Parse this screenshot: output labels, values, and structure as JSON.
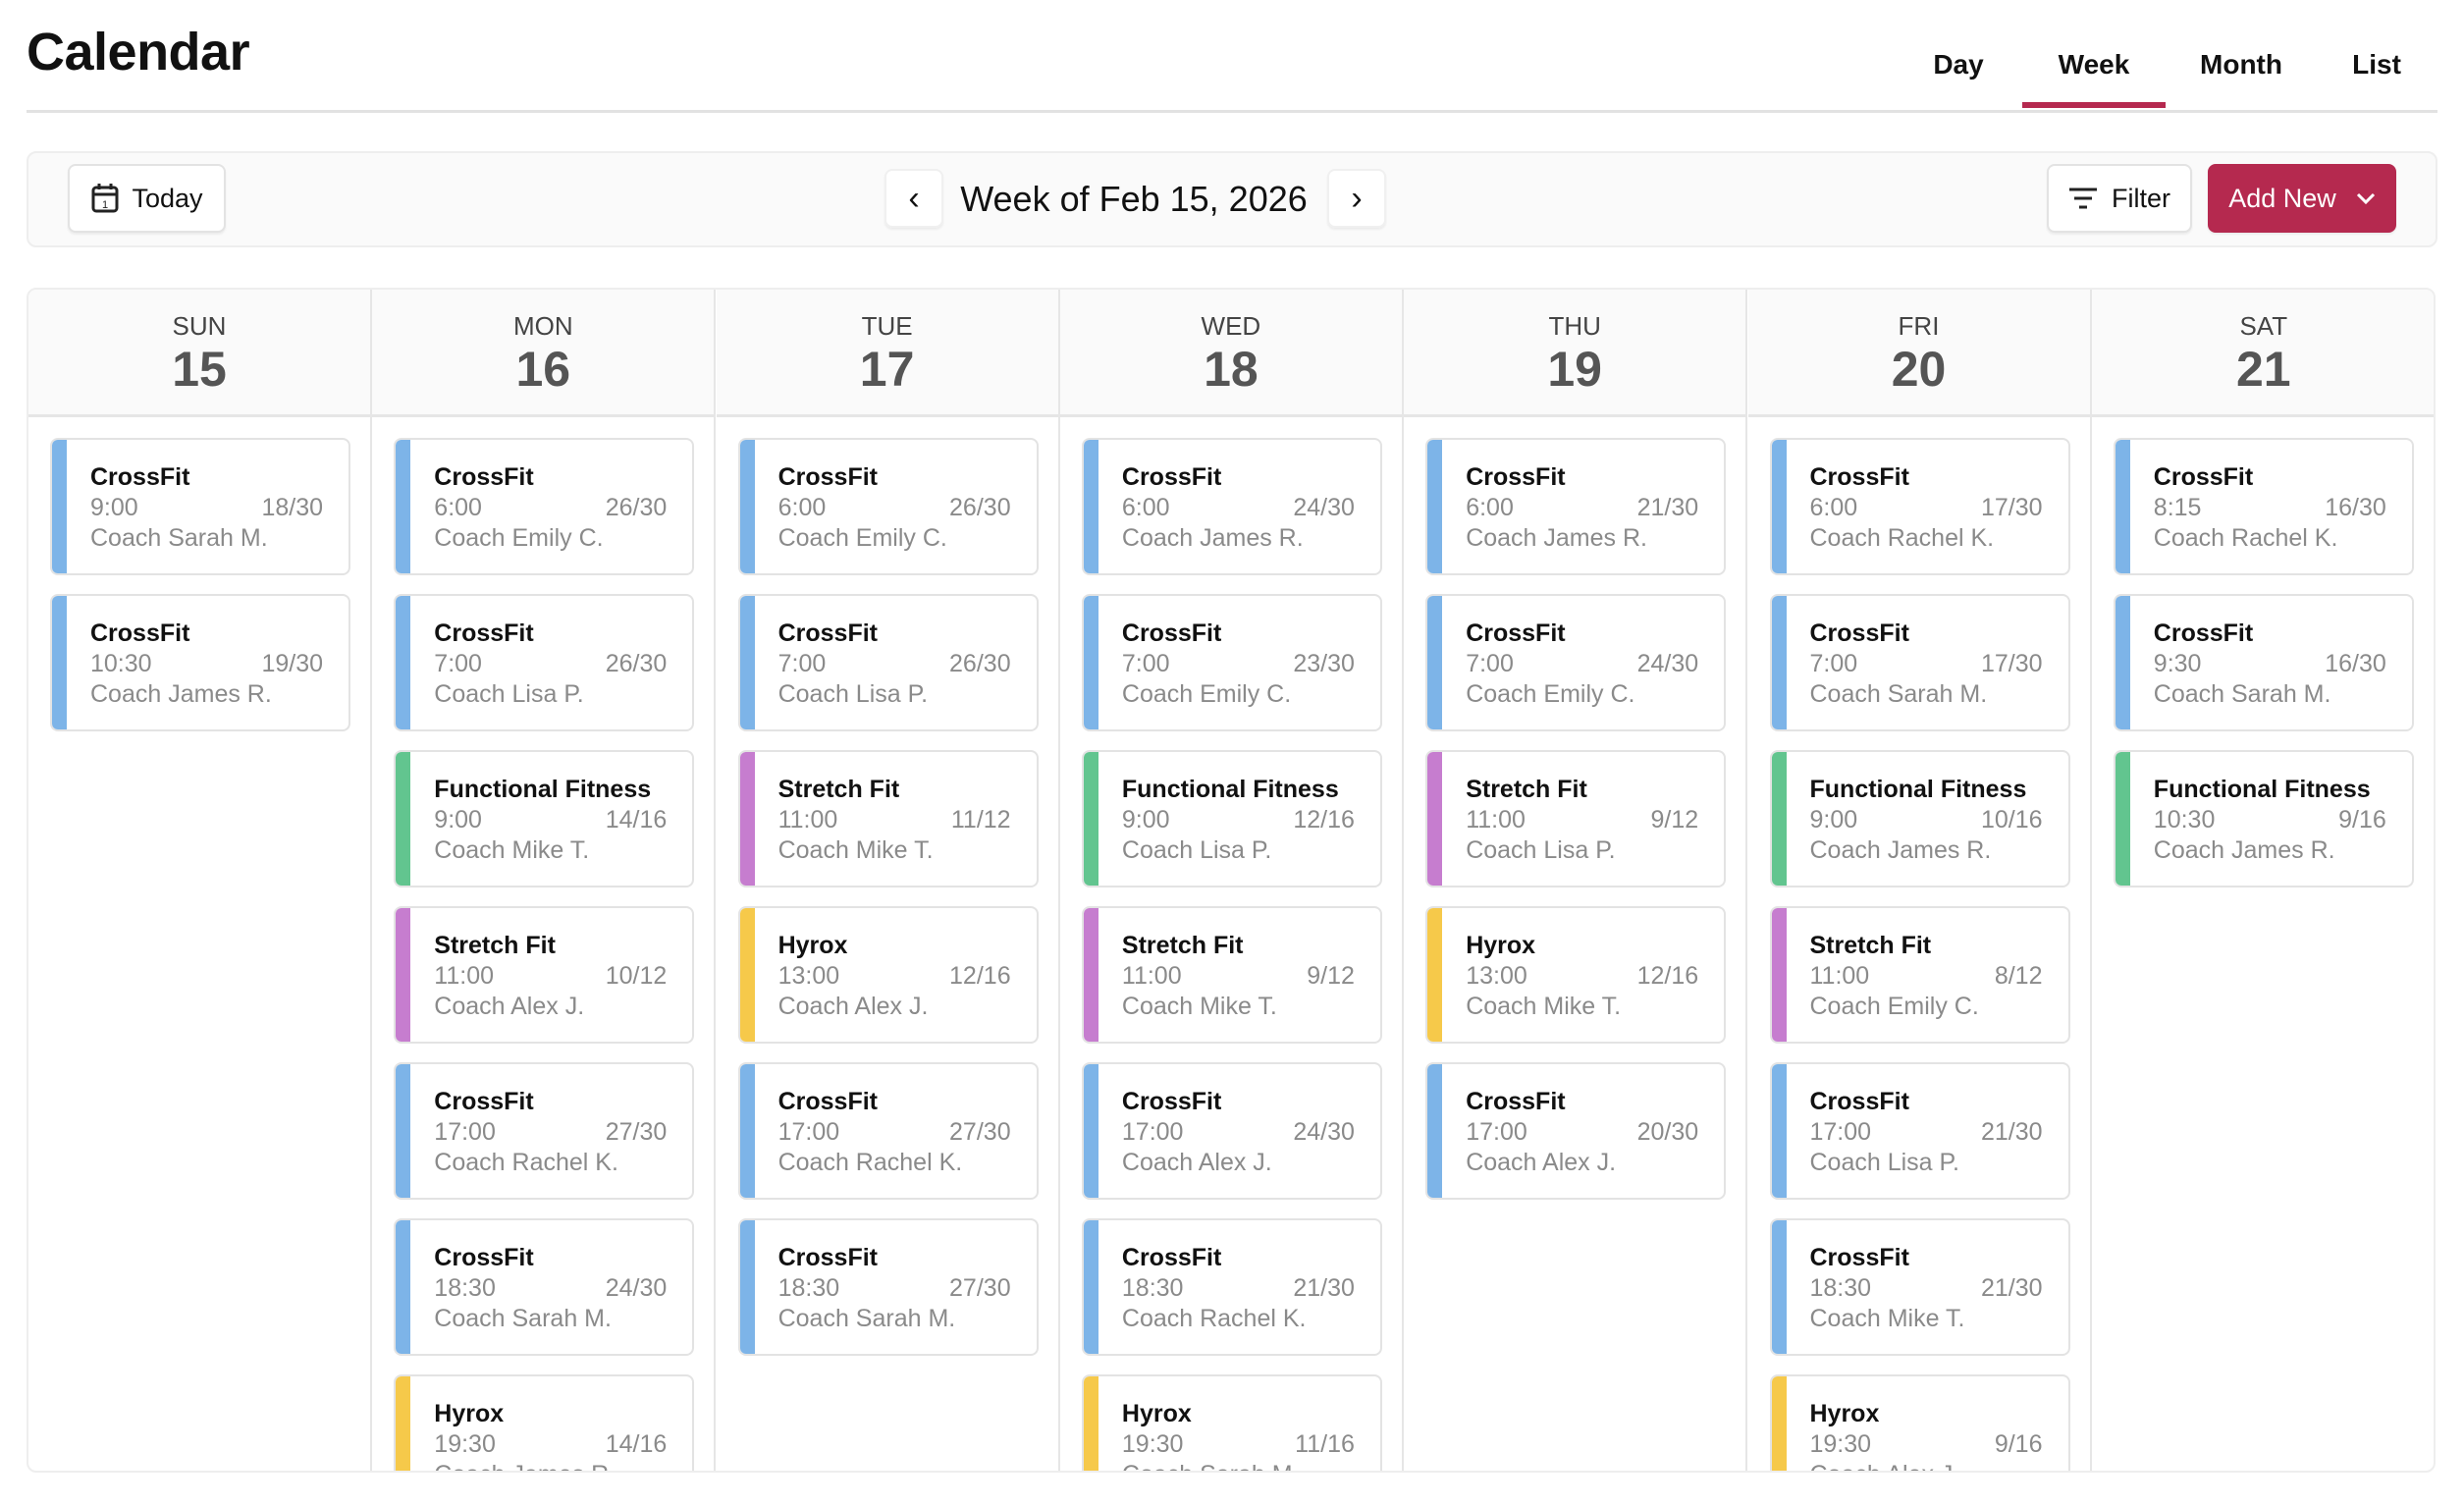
{
  "header": {
    "title": "Calendar",
    "tabs": [
      "Day",
      "Week",
      "Month",
      "List"
    ],
    "active_tab": "Week"
  },
  "toolbar": {
    "today_label": "Today",
    "week_title": "Week of Feb 15, 2026",
    "filter_label": "Filter",
    "add_new_label": "Add New"
  },
  "colors": {
    "accent": "#b5294f",
    "CrossFit": "#7db4e8",
    "Functional Fitness": "#62c58f",
    "Stretch Fit": "#c67dcf",
    "Hyrox": "#f6c94a"
  },
  "days": [
    {
      "name": "SUN",
      "date": "15",
      "classes": [
        {
          "title": "CrossFit",
          "time": "9:00",
          "capacity": "18/30",
          "coach": "Coach Sarah M."
        },
        {
          "title": "CrossFit",
          "time": "10:30",
          "capacity": "19/30",
          "coach": "Coach James R."
        }
      ]
    },
    {
      "name": "MON",
      "date": "16",
      "classes": [
        {
          "title": "CrossFit",
          "time": "6:00",
          "capacity": "26/30",
          "coach": "Coach Emily C."
        },
        {
          "title": "CrossFit",
          "time": "7:00",
          "capacity": "26/30",
          "coach": "Coach Lisa P."
        },
        {
          "title": "Functional Fitness",
          "time": "9:00",
          "capacity": "14/16",
          "coach": "Coach Mike T."
        },
        {
          "title": "Stretch Fit",
          "time": "11:00",
          "capacity": "10/12",
          "coach": "Coach Alex J."
        },
        {
          "title": "CrossFit",
          "time": "17:00",
          "capacity": "27/30",
          "coach": "Coach Rachel K."
        },
        {
          "title": "CrossFit",
          "time": "18:30",
          "capacity": "24/30",
          "coach": "Coach Sarah M."
        },
        {
          "title": "Hyrox",
          "time": "19:30",
          "capacity": "14/16",
          "coach": "Coach James R."
        }
      ]
    },
    {
      "name": "TUE",
      "date": "17",
      "classes": [
        {
          "title": "CrossFit",
          "time": "6:00",
          "capacity": "26/30",
          "coach": "Coach Emily C."
        },
        {
          "title": "CrossFit",
          "time": "7:00",
          "capacity": "26/30",
          "coach": "Coach Lisa P."
        },
        {
          "title": "Stretch Fit",
          "time": "11:00",
          "capacity": "11/12",
          "coach": "Coach Mike T."
        },
        {
          "title": "Hyrox",
          "time": "13:00",
          "capacity": "12/16",
          "coach": "Coach Alex J."
        },
        {
          "title": "CrossFit",
          "time": "17:00",
          "capacity": "27/30",
          "coach": "Coach Rachel K."
        },
        {
          "title": "CrossFit",
          "time": "18:30",
          "capacity": "27/30",
          "coach": "Coach Sarah M."
        }
      ]
    },
    {
      "name": "WED",
      "date": "18",
      "classes": [
        {
          "title": "CrossFit",
          "time": "6:00",
          "capacity": "24/30",
          "coach": "Coach James R."
        },
        {
          "title": "CrossFit",
          "time": "7:00",
          "capacity": "23/30",
          "coach": "Coach Emily C."
        },
        {
          "title": "Functional Fitness",
          "time": "9:00",
          "capacity": "12/16",
          "coach": "Coach Lisa P."
        },
        {
          "title": "Stretch Fit",
          "time": "11:00",
          "capacity": "9/12",
          "coach": "Coach Mike T."
        },
        {
          "title": "CrossFit",
          "time": "17:00",
          "capacity": "24/30",
          "coach": "Coach Alex J."
        },
        {
          "title": "CrossFit",
          "time": "18:30",
          "capacity": "21/30",
          "coach": "Coach Rachel K."
        },
        {
          "title": "Hyrox",
          "time": "19:30",
          "capacity": "11/16",
          "coach": "Coach Sarah M."
        }
      ]
    },
    {
      "name": "THU",
      "date": "19",
      "classes": [
        {
          "title": "CrossFit",
          "time": "6:00",
          "capacity": "21/30",
          "coach": "Coach James R."
        },
        {
          "title": "CrossFit",
          "time": "7:00",
          "capacity": "24/30",
          "coach": "Coach Emily C."
        },
        {
          "title": "Stretch Fit",
          "time": "11:00",
          "capacity": "9/12",
          "coach": "Coach Lisa P."
        },
        {
          "title": "Hyrox",
          "time": "13:00",
          "capacity": "12/16",
          "coach": "Coach Mike T."
        },
        {
          "title": "CrossFit",
          "time": "17:00",
          "capacity": "20/30",
          "coach": "Coach Alex J."
        }
      ]
    },
    {
      "name": "FRI",
      "date": "20",
      "classes": [
        {
          "title": "CrossFit",
          "time": "6:00",
          "capacity": "17/30",
          "coach": "Coach Rachel K."
        },
        {
          "title": "CrossFit",
          "time": "7:00",
          "capacity": "17/30",
          "coach": "Coach Sarah M."
        },
        {
          "title": "Functional Fitness",
          "time": "9:00",
          "capacity": "10/16",
          "coach": "Coach James R."
        },
        {
          "title": "Stretch Fit",
          "time": "11:00",
          "capacity": "8/12",
          "coach": "Coach Emily C."
        },
        {
          "title": "CrossFit",
          "time": "17:00",
          "capacity": "21/30",
          "coach": "Coach Lisa P."
        },
        {
          "title": "CrossFit",
          "time": "18:30",
          "capacity": "21/30",
          "coach": "Coach Mike T."
        },
        {
          "title": "Hyrox",
          "time": "19:30",
          "capacity": "9/16",
          "coach": "Coach Alex J."
        }
      ]
    },
    {
      "name": "SAT",
      "date": "21",
      "classes": [
        {
          "title": "CrossFit",
          "time": "8:15",
          "capacity": "16/30",
          "coach": "Coach Rachel K."
        },
        {
          "title": "CrossFit",
          "time": "9:30",
          "capacity": "16/30",
          "coach": "Coach Sarah M."
        },
        {
          "title": "Functional Fitness",
          "time": "10:30",
          "capacity": "9/16",
          "coach": "Coach James R."
        }
      ]
    }
  ]
}
